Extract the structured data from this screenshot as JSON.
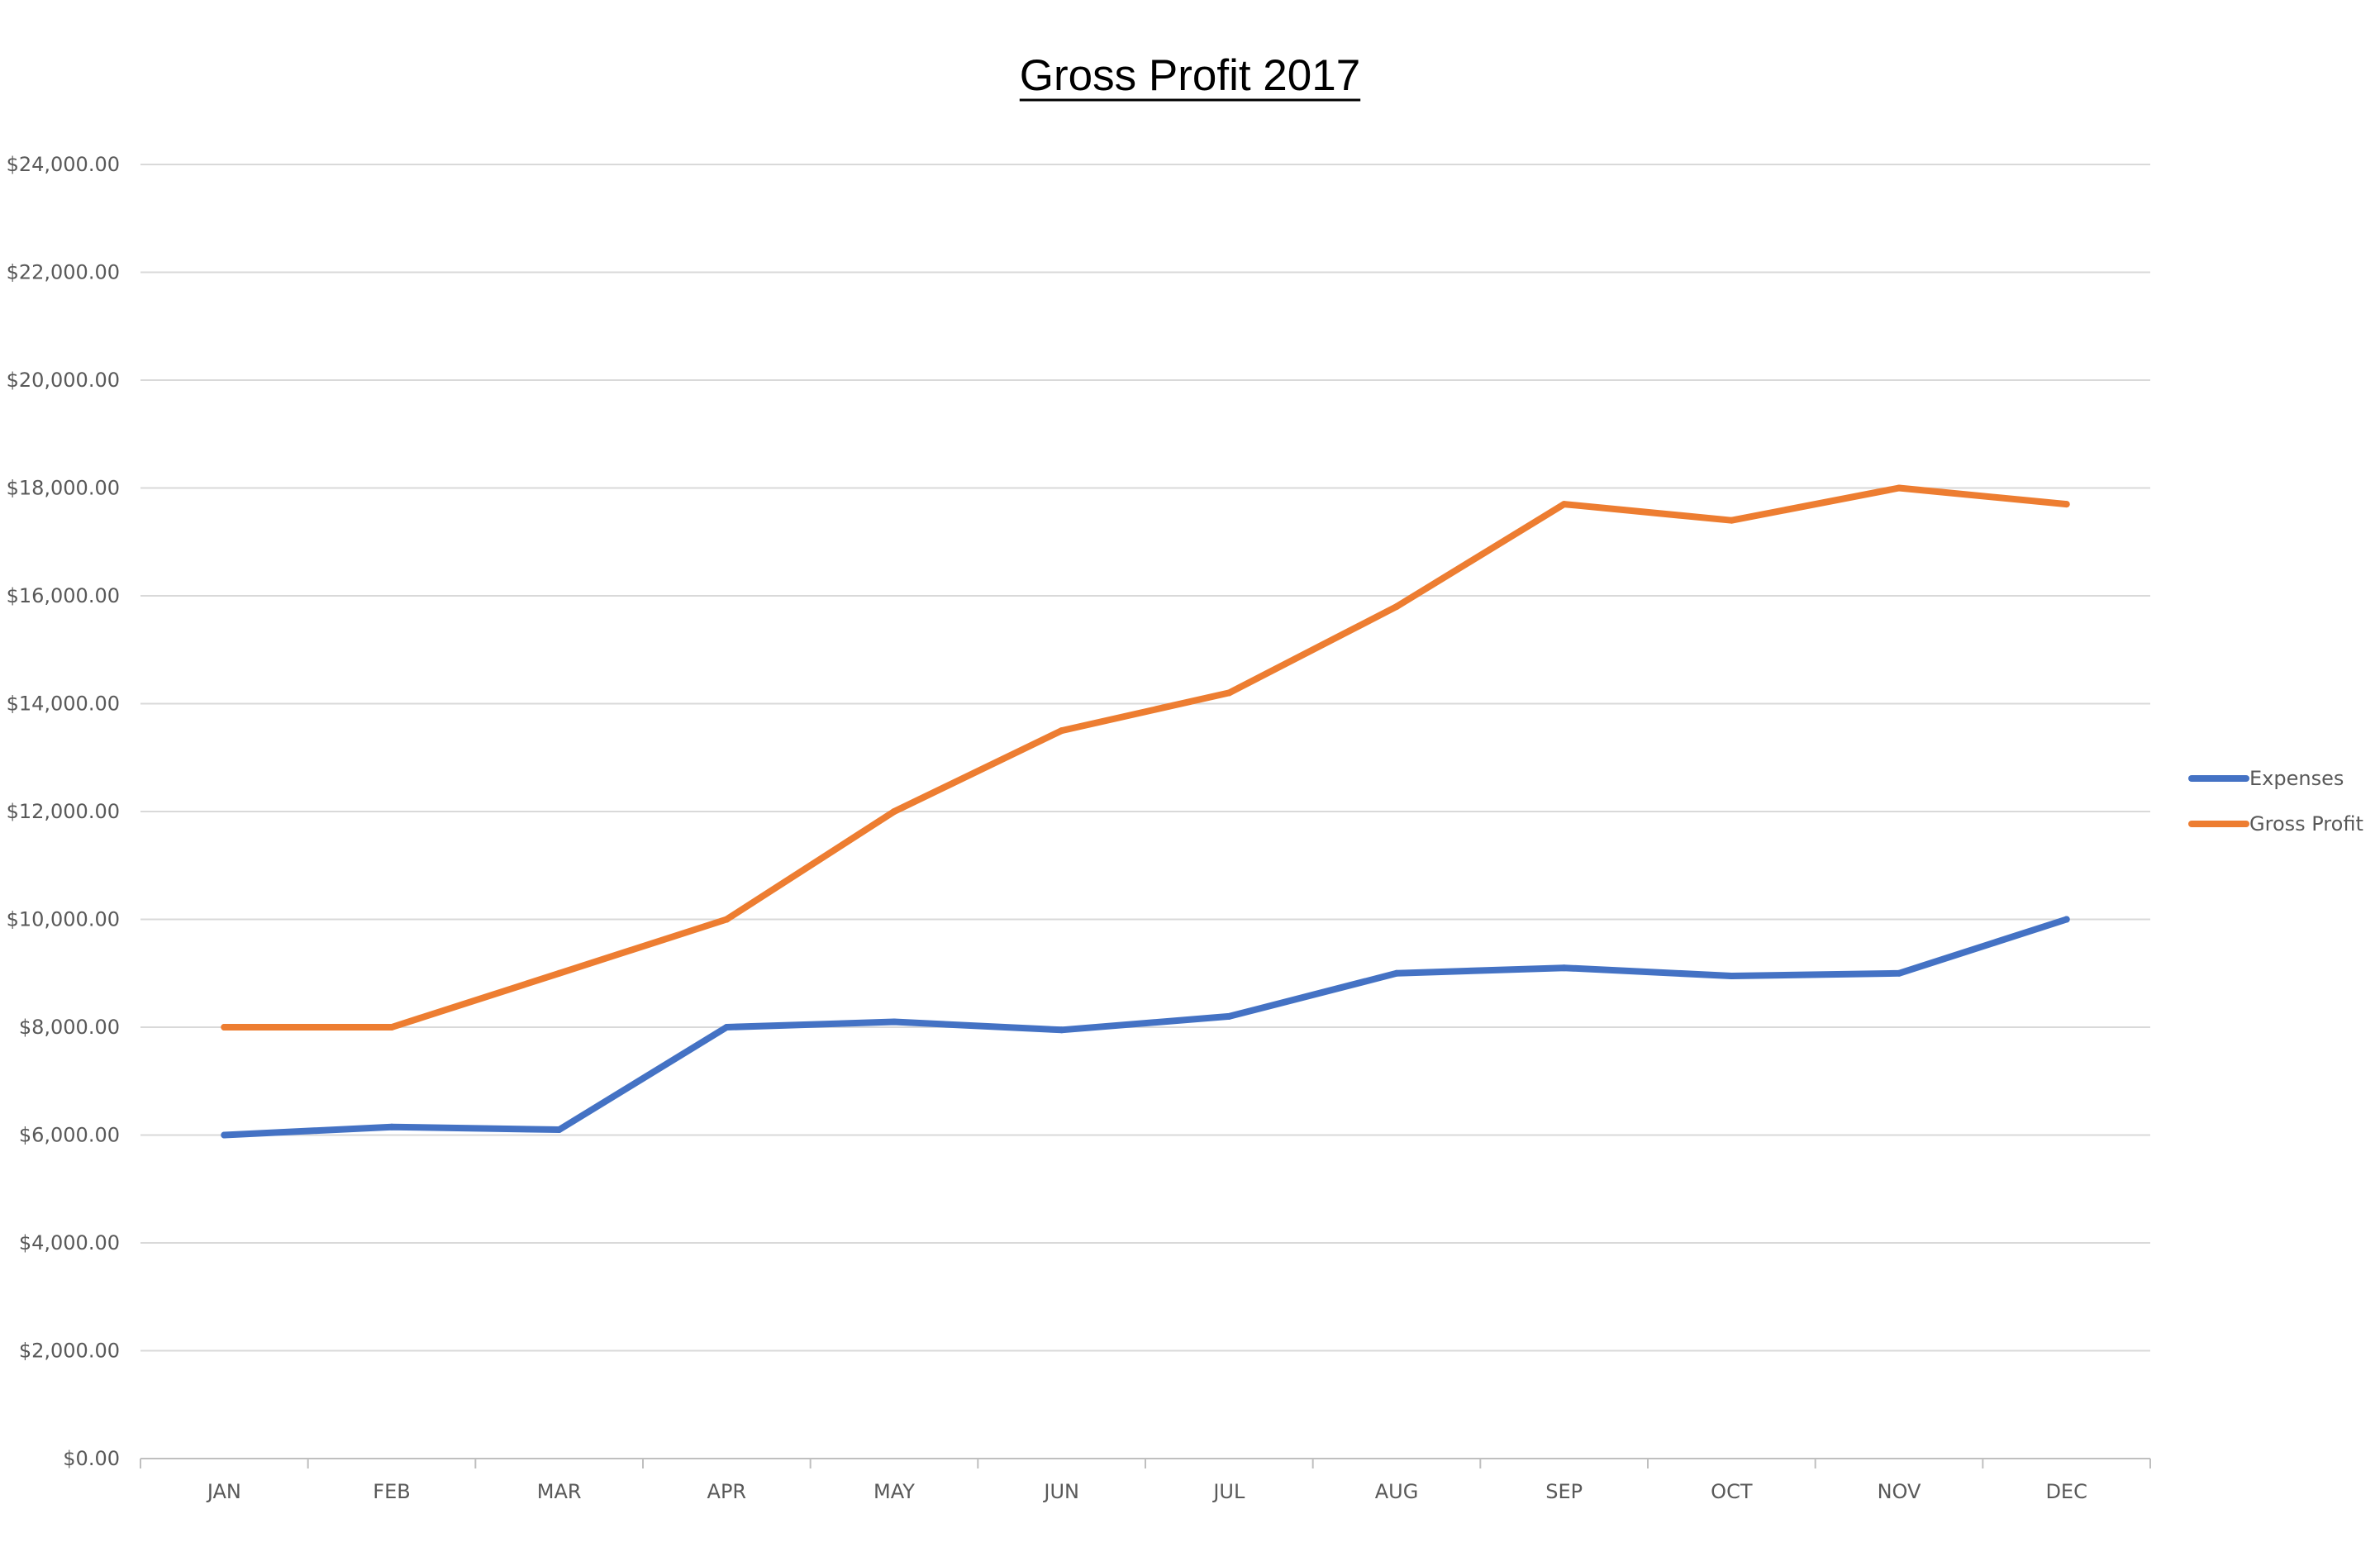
{
  "chart_data": {
    "type": "line",
    "title": "Gross Profit 2017",
    "categories": [
      "JAN",
      "FEB",
      "MAR",
      "APR",
      "MAY",
      "JUN",
      "JUL",
      "AUG",
      "SEP",
      "OCT",
      "NOV",
      "DEC"
    ],
    "series": [
      {
        "name": "Expenses",
        "color": "#4472c4",
        "values": [
          6000,
          6150,
          6100,
          8000,
          8100,
          7950,
          8200,
          9000,
          9100,
          8950,
          9000,
          10000
        ]
      },
      {
        "name": "Gross Profit",
        "color": "#ed7d31",
        "values": [
          8000,
          8000,
          9000,
          10000,
          12000,
          13500,
          14200,
          15800,
          17700,
          17400,
          18000,
          17700
        ]
      }
    ],
    "ylim": [
      0,
      24000
    ],
    "ytick_step": 2000,
    "ytick_labels": [
      "$0.00",
      "$2,000.00",
      "$4,000.00",
      "$6,000.00",
      "$8,000.00",
      "$10,000.00",
      "$12,000.00",
      "$14,000.00",
      "$16,000.00",
      "$18,000.00",
      "$20,000.00",
      "$22,000.00",
      "$24,000.00"
    ],
    "xlabel": "",
    "ylabel": "",
    "grid": true,
    "legend_position": "right",
    "gridline_color": "#d9d9d9",
    "axis_color": "#bfbfbf"
  }
}
